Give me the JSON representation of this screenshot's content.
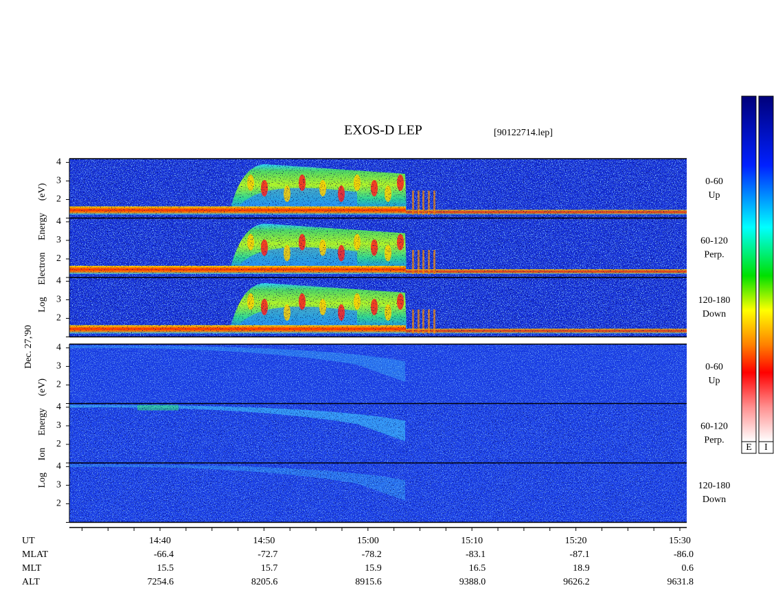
{
  "chart_data": {
    "type": "spectrogram",
    "title": "EXOS-D LEP",
    "file": "[90122714.lep]",
    "date": "Dec. 27,'90",
    "ylim": [
      1,
      4.2
    ],
    "yticks": [
      2,
      3,
      4
    ],
    "species": [
      {
        "label": "Log Electron Energy (eV)",
        "panels": [
          {
            "pitch": "0-60",
            "dir": "Up"
          },
          {
            "pitch": "60-120",
            "dir": "Perp."
          },
          {
            "pitch": "120-180",
            "dir": "Down"
          }
        ]
      },
      {
        "label": "Log Ion Energy (eV)",
        "panels": [
          {
            "pitch": "0-60",
            "dir": "Up"
          },
          {
            "pitch": "60-120",
            "dir": "Perp."
          },
          {
            "pitch": "120-180",
            "dir": "Down"
          }
        ]
      }
    ],
    "colorbars": [
      "E",
      "I"
    ],
    "ephemeris": [
      {
        "name": "UT",
        "values": [
          "14:40",
          "14:50",
          "15:00",
          "15:10",
          "15:20",
          "15:30"
        ]
      },
      {
        "name": "MLAT",
        "values": [
          "-66.4",
          "-72.7",
          "-78.2",
          "-83.1",
          "-87.1",
          "-86.0"
        ]
      },
      {
        "name": "MLT",
        "values": [
          "15.5",
          "15.7",
          "15.9",
          "16.5",
          "18.9",
          "0.6"
        ]
      },
      {
        "name": "ALT",
        "values": [
          "7254.6",
          "8205.6",
          "8915.6",
          "9388.0",
          "9626.2",
          "9631.8"
        ]
      }
    ]
  }
}
